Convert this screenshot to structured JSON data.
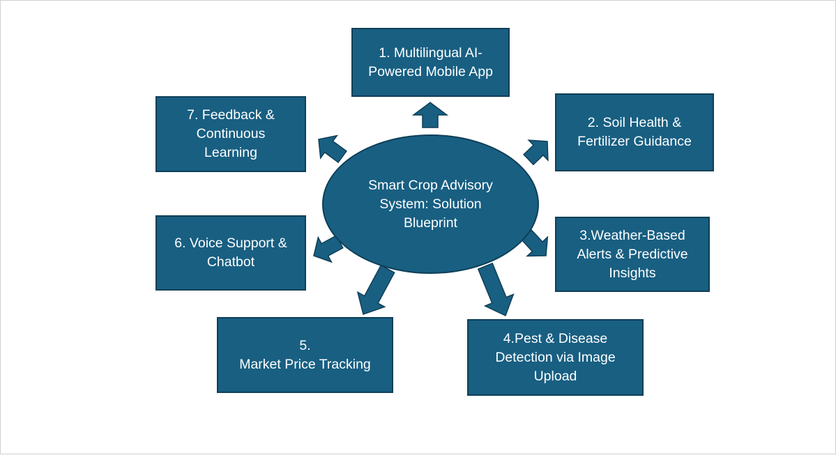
{
  "colors": {
    "box_fill": "#185f82",
    "box_border": "#0f3f57",
    "text": "#ffffff",
    "background": "#ffffff"
  },
  "center": {
    "label": "Smart Crop Advisory System: Solution Blueprint"
  },
  "nodes": [
    {
      "id": "multilingual-app",
      "label": "1. Multilingual AI-\nPowered Mobile App"
    },
    {
      "id": "soil-health",
      "label": "2. Soil Health &\nFertilizer Guidance"
    },
    {
      "id": "weather-alerts",
      "label": "3.Weather-Based\nAlerts & Predictive\nInsights"
    },
    {
      "id": "pest-detection",
      "label": "4.Pest & Disease\nDetection via Image\nUpload"
    },
    {
      "id": "market-price",
      "label": "5.\nMarket Price Tracking"
    },
    {
      "id": "voice-support",
      "label": "6. Voice Support &\nChatbot"
    },
    {
      "id": "feedback",
      "label": "7. Feedback &\nContinuous\nLearning"
    }
  ]
}
